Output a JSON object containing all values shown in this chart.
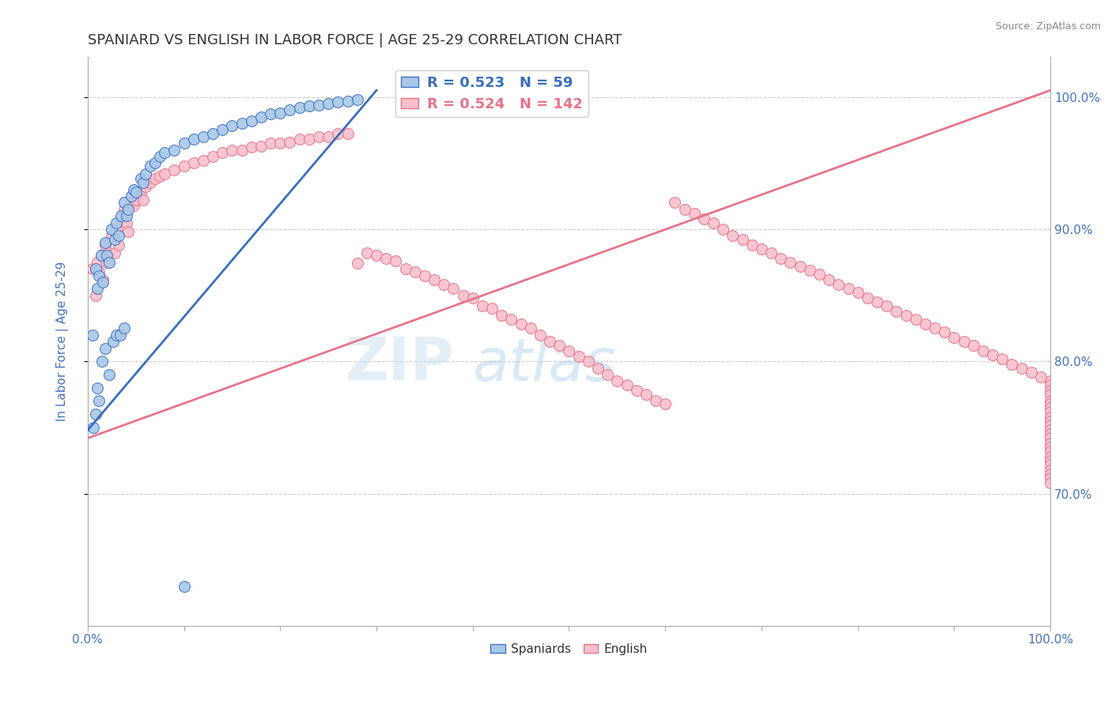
{
  "title": "SPANIARD VS ENGLISH IN LABOR FORCE | AGE 25-29 CORRELATION CHART",
  "source": "Source: ZipAtlas.com",
  "ylabel": "In Labor Force | Age 25-29",
  "xlim": [
    0.0,
    1.0
  ],
  "ylim": [
    0.6,
    1.03
  ],
  "x_ticks": [
    0.0,
    0.1,
    0.2,
    0.3,
    0.4,
    0.5,
    0.6,
    0.7,
    0.8,
    0.9,
    1.0
  ],
  "x_tick_labels": [
    "0.0%",
    "",
    "",
    "",
    "",
    "",
    "",
    "",
    "",
    "",
    "100.0%"
  ],
  "y_tick_labels": [
    "70.0%",
    "80.0%",
    "90.0%",
    "100.0%"
  ],
  "y_ticks": [
    0.7,
    0.8,
    0.9,
    1.0
  ],
  "blue_R": 0.523,
  "blue_N": 59,
  "pink_R": 0.524,
  "pink_N": 142,
  "blue_color": "#a8c8e8",
  "pink_color": "#f8c0cc",
  "blue_edge_color": "#4472c4",
  "pink_edge_color": "#e8748a",
  "blue_line_color": "#3a6fbd",
  "pink_line_color": "#e8748a",
  "title_color": "#333333",
  "axis_label_color": "#4472c4",
  "blue_line_x": [
    0.0,
    0.3
  ],
  "blue_line_y": [
    0.748,
    1.005
  ],
  "pink_line_x": [
    0.0,
    1.0
  ],
  "pink_line_y": [
    0.742,
    1.005
  ],
  "spaniards_x": [
    0.005,
    0.008,
    0.01,
    0.012,
    0.014,
    0.016,
    0.018,
    0.02,
    0.022,
    0.025,
    0.028,
    0.03,
    0.032,
    0.035,
    0.038,
    0.04,
    0.042,
    0.045,
    0.048,
    0.05,
    0.055,
    0.058,
    0.06,
    0.065,
    0.07,
    0.075,
    0.08,
    0.09,
    0.1,
    0.11,
    0.12,
    0.13,
    0.14,
    0.15,
    0.16,
    0.17,
    0.18,
    0.19,
    0.2,
    0.21,
    0.22,
    0.23,
    0.24,
    0.25,
    0.26,
    0.27,
    0.28,
    0.006,
    0.008,
    0.01,
    0.012,
    0.015,
    0.018,
    0.022,
    0.026,
    0.03,
    0.034,
    0.038,
    0.1
  ],
  "spaniards_y": [
    0.82,
    0.87,
    0.855,
    0.865,
    0.88,
    0.86,
    0.89,
    0.88,
    0.875,
    0.9,
    0.892,
    0.905,
    0.895,
    0.91,
    0.92,
    0.91,
    0.915,
    0.925,
    0.93,
    0.928,
    0.938,
    0.935,
    0.942,
    0.948,
    0.95,
    0.955,
    0.958,
    0.96,
    0.965,
    0.968,
    0.97,
    0.972,
    0.975,
    0.978,
    0.98,
    0.982,
    0.985,
    0.987,
    0.988,
    0.99,
    0.992,
    0.993,
    0.994,
    0.995,
    0.996,
    0.997,
    0.998,
    0.75,
    0.76,
    0.78,
    0.77,
    0.8,
    0.81,
    0.79,
    0.815,
    0.82,
    0.82,
    0.825,
    0.63
  ],
  "english_x": [
    0.005,
    0.008,
    0.01,
    0.012,
    0.014,
    0.016,
    0.018,
    0.02,
    0.022,
    0.025,
    0.028,
    0.03,
    0.032,
    0.035,
    0.038,
    0.04,
    0.042,
    0.045,
    0.048,
    0.05,
    0.055,
    0.058,
    0.06,
    0.065,
    0.07,
    0.075,
    0.08,
    0.09,
    0.1,
    0.11,
    0.12,
    0.13,
    0.14,
    0.15,
    0.16,
    0.17,
    0.18,
    0.19,
    0.2,
    0.21,
    0.22,
    0.23,
    0.24,
    0.25,
    0.26,
    0.27,
    0.28,
    0.29,
    0.3,
    0.31,
    0.32,
    0.33,
    0.34,
    0.35,
    0.36,
    0.37,
    0.38,
    0.39,
    0.4,
    0.41,
    0.42,
    0.43,
    0.44,
    0.45,
    0.46,
    0.47,
    0.48,
    0.49,
    0.5,
    0.51,
    0.52,
    0.53,
    0.54,
    0.55,
    0.56,
    0.57,
    0.58,
    0.59,
    0.6,
    0.61,
    0.62,
    0.63,
    0.64,
    0.65,
    0.66,
    0.67,
    0.68,
    0.69,
    0.7,
    0.71,
    0.72,
    0.73,
    0.74,
    0.75,
    0.76,
    0.77,
    0.78,
    0.79,
    0.8,
    0.81,
    0.82,
    0.83,
    0.84,
    0.85,
    0.86,
    0.87,
    0.88,
    0.89,
    0.9,
    0.91,
    0.92,
    0.93,
    0.94,
    0.95,
    0.96,
    0.97,
    0.98,
    0.99,
    1.0,
    1.0,
    1.0,
    1.0,
    1.0,
    1.0,
    1.0,
    1.0,
    1.0,
    1.0,
    1.0,
    1.0,
    1.0,
    1.0,
    1.0,
    1.0,
    1.0,
    1.0,
    1.0,
    1.0,
    1.0,
    1.0,
    1.0,
    1.0
  ],
  "english_y": [
    0.87,
    0.85,
    0.875,
    0.868,
    0.88,
    0.862,
    0.888,
    0.875,
    0.882,
    0.895,
    0.882,
    0.9,
    0.888,
    0.908,
    0.915,
    0.905,
    0.898,
    0.92,
    0.918,
    0.922,
    0.928,
    0.922,
    0.932,
    0.935,
    0.938,
    0.94,
    0.942,
    0.945,
    0.948,
    0.95,
    0.952,
    0.955,
    0.958,
    0.96,
    0.96,
    0.962,
    0.963,
    0.965,
    0.965,
    0.966,
    0.968,
    0.968,
    0.97,
    0.97,
    0.972,
    0.972,
    0.874,
    0.882,
    0.88,
    0.878,
    0.876,
    0.87,
    0.868,
    0.865,
    0.862,
    0.858,
    0.855,
    0.85,
    0.848,
    0.842,
    0.84,
    0.835,
    0.832,
    0.828,
    0.825,
    0.82,
    0.815,
    0.812,
    0.808,
    0.804,
    0.8,
    0.795,
    0.79,
    0.785,
    0.782,
    0.778,
    0.775,
    0.77,
    0.768,
    0.92,
    0.915,
    0.912,
    0.908,
    0.905,
    0.9,
    0.895,
    0.892,
    0.888,
    0.885,
    0.882,
    0.878,
    0.875,
    0.872,
    0.869,
    0.866,
    0.862,
    0.858,
    0.855,
    0.852,
    0.848,
    0.845,
    0.842,
    0.838,
    0.835,
    0.832,
    0.828,
    0.825,
    0.822,
    0.818,
    0.815,
    0.812,
    0.808,
    0.805,
    0.802,
    0.798,
    0.795,
    0.792,
    0.788,
    0.785,
    0.782,
    0.778,
    0.775,
    0.77,
    0.768,
    0.765,
    0.762,
    0.758,
    0.755,
    0.752,
    0.748,
    0.745,
    0.742,
    0.738,
    0.735,
    0.732,
    0.728,
    0.725,
    0.722,
    0.718,
    0.715,
    0.712,
    0.708
  ]
}
